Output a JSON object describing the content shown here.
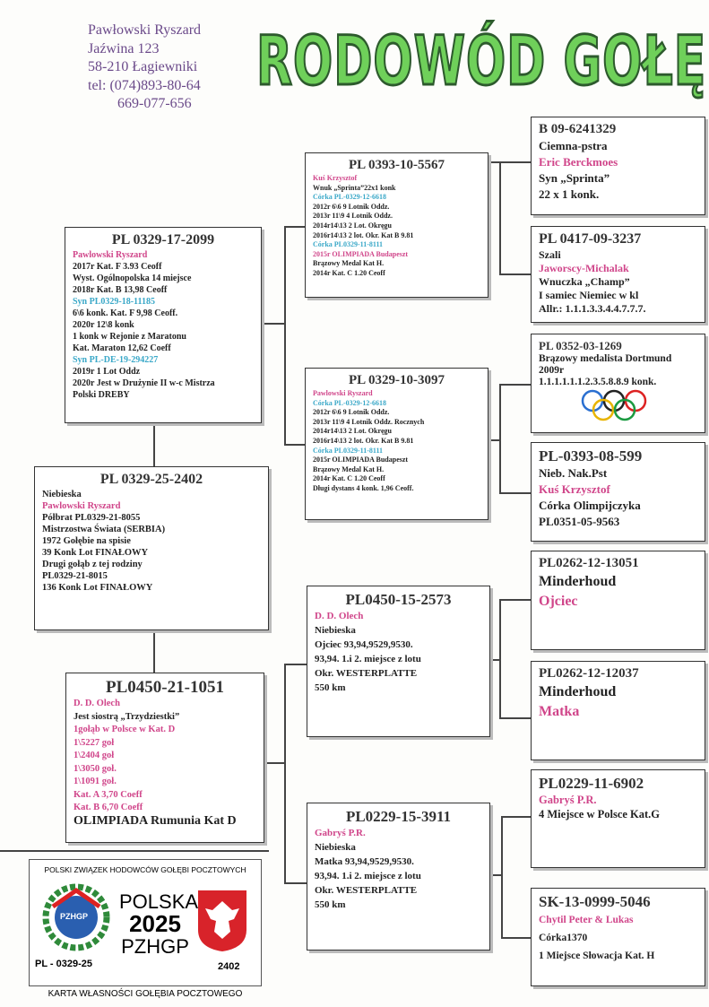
{
  "header": {
    "owner": [
      "Pawłowski Ryszard",
      "Jaźwina 123",
      "58-210 Łagiewniki",
      "tel: (074)893-80-64",
      "669-077-656"
    ],
    "title": "RODOWÓD GOŁĘBIA"
  },
  "boxes": [
    {
      "title": "PL 0329-25-2402",
      "lines": [
        "Niebieska",
        "Pawlowski Ryszard",
        "Półbrat PL0329-21-8055",
        "Mistrzostwa Świata (SERBIA)",
        "1972 Gołębie na spisie",
        "39 Konk Lot FINAŁOWY",
        "Drugi gołąb z tej rodziny",
        "PL0329-21-8015",
        "136 Konk Lot FINAŁOWY"
      ]
    },
    {
      "title": "PL 0329-17-2099",
      "lines": [
        "Pawlowski Ryszard",
        "2017r Kat. F 3.93 Ceoff",
        "Wyst. Ogólnopolska 14 miejsce",
        "2018r Kat. B 13,98 Ceoff",
        "Syn PL0329-18-11185",
        "6\\6 konk. Kat. F 9,98 Ceoff.",
        "2020r 12\\8 konk",
        "1 konk w Rejonie z Maratonu",
        "Kat. Maraton 12,62 Coeff",
        "Syn PL-DE-19-294227",
        "2019r 1 Lot Oddz",
        "2020r Jest w Drużynie II w-c Mistrza",
        "Polski DREBY"
      ]
    },
    {
      "title": "PL0450-21-1051",
      "lines": [
        "D. D. Olech",
        "Jest siostrą „Trzydziestki”",
        "1gołąb w Polsce w Kat. D",
        "1\\5227 goł",
        "1\\2404 goł",
        "1\\3050 goł.",
        "1\\1091 goł.",
        "Kat. A 3,70 Coeff",
        "Kat. B 6,70 Coeff",
        "OLIMPIADA Rumunia Kat D"
      ]
    },
    {
      "title": "PL 0393-10-5567",
      "lines": [
        "Kuś Krzysztof",
        "Wnuk „Sprinta”22x1 konk",
        "Córka PL-0329-12-6618",
        "2012r 6\\6 9 Lotnik Oddz.",
        "2013r 11\\9 4 Lotnik Oddz.",
        "2014r14\\13 2 Lot. Okręgu",
        "2016r14\\13 2 lot. Okr. Kat B 9.81",
        "Córka PL0329-11-8111",
        "2015r OLIMPIADA Budapeszt",
        "Brązowy Medal Kat H.",
        "2014r Kat. C 1.20 Ceoff"
      ]
    },
    {
      "title": "PL 0329-10-3097",
      "lines": [
        "Pawlowski Ryszard",
        "Córka PL-0329-12-6618",
        "2012r 6\\6 9 Lotnik Oddz.",
        "2013r 11\\9 4 Lotnik Oddz. Rocznych",
        "2014r14\\13 2 Lot. Okręgu",
        "2016r14\\13 2 lot. Okr. Kat B 9.81",
        "Córka PL0329-11-8111",
        "2015r OLIMPIADA Budapeszt",
        "Brązowy Medal Kat H.",
        "2014r Kat. C 1.20 Ceoff",
        "Długi dystans 4 konk. 1,96 Ceoff."
      ]
    },
    {
      "title": "PL0450-15-2573",
      "lines": [
        "D. D. Olech",
        "Niebieska",
        "Ojciec 93,94,9529,9530.",
        "93,94. 1.i 2. miejsce z lotu",
        "Okr. WESTERPLATTE",
        "550 km"
      ]
    },
    {
      "title": "PL0229-15-3911",
      "lines": [
        "Gabryś P.R.",
        "Niebieska",
        "Matka 93,94,9529,9530.",
        "93,94. 1.i 2. miejsce z lotu",
        "Okr. WESTERPLATTE",
        "550 km"
      ]
    },
    {
      "title": "B 09-6241329",
      "lines": [
        "Ciemna-pstra",
        "Eric Berckmoes",
        "Syn „Sprinta”",
        "22 x 1 konk."
      ]
    },
    {
      "title": "PL 0417-09-3237",
      "lines": [
        "Szali",
        "Jaworscy-Michalak",
        "Wnuczka „Champ”",
        "I samiec Niemiec w kl",
        "Allr.: 1.1.1.3.3.4.4.7.7.7."
      ]
    },
    {
      "title": "PL 0352-03-1269",
      "lines": [
        "Brązowy medalista Dortmund",
        "2009r",
        "1.1.1.1.1.1.2.3.5.8.8.9 konk."
      ]
    },
    {
      "title": "PL-0393-08-599",
      "lines": [
        "Nieb. Nak.Pst",
        "Kuś Krzysztof",
        "Córka Olimpijczyka",
        "PL0351-05-9563"
      ]
    },
    {
      "title": "PL0262-12-13051",
      "lines": [
        "Minderhoud",
        "Ojciec"
      ]
    },
    {
      "title": "PL0262-12-12037",
      "lines": [
        "Minderhoud",
        "Matka"
      ]
    },
    {
      "title": "PL0229-11-6902",
      "lines": [
        "Gabryś P.R.",
        "4 Miejsce w Polsce Kat.G"
      ]
    },
    {
      "title": "SK-13-0999-5046",
      "lines": [
        "Chytil Peter & Lukas",
        "Córka1370",
        "1 Miejsce Słowacja Kat. H"
      ]
    }
  ],
  "card": {
    "union": "POLSKI ZWIĄZEK HODOWCÓW GOŁĘBI POCZTOWYCH",
    "emblem": "PZHGP",
    "country": "POLSKA",
    "year": "2025",
    "short": "PZHGP",
    "ring": "PL - 0329-25",
    "number": "2402",
    "footer": "KARTA WŁASNOŚCI GOŁĘBIA POCZTOWEGO"
  }
}
